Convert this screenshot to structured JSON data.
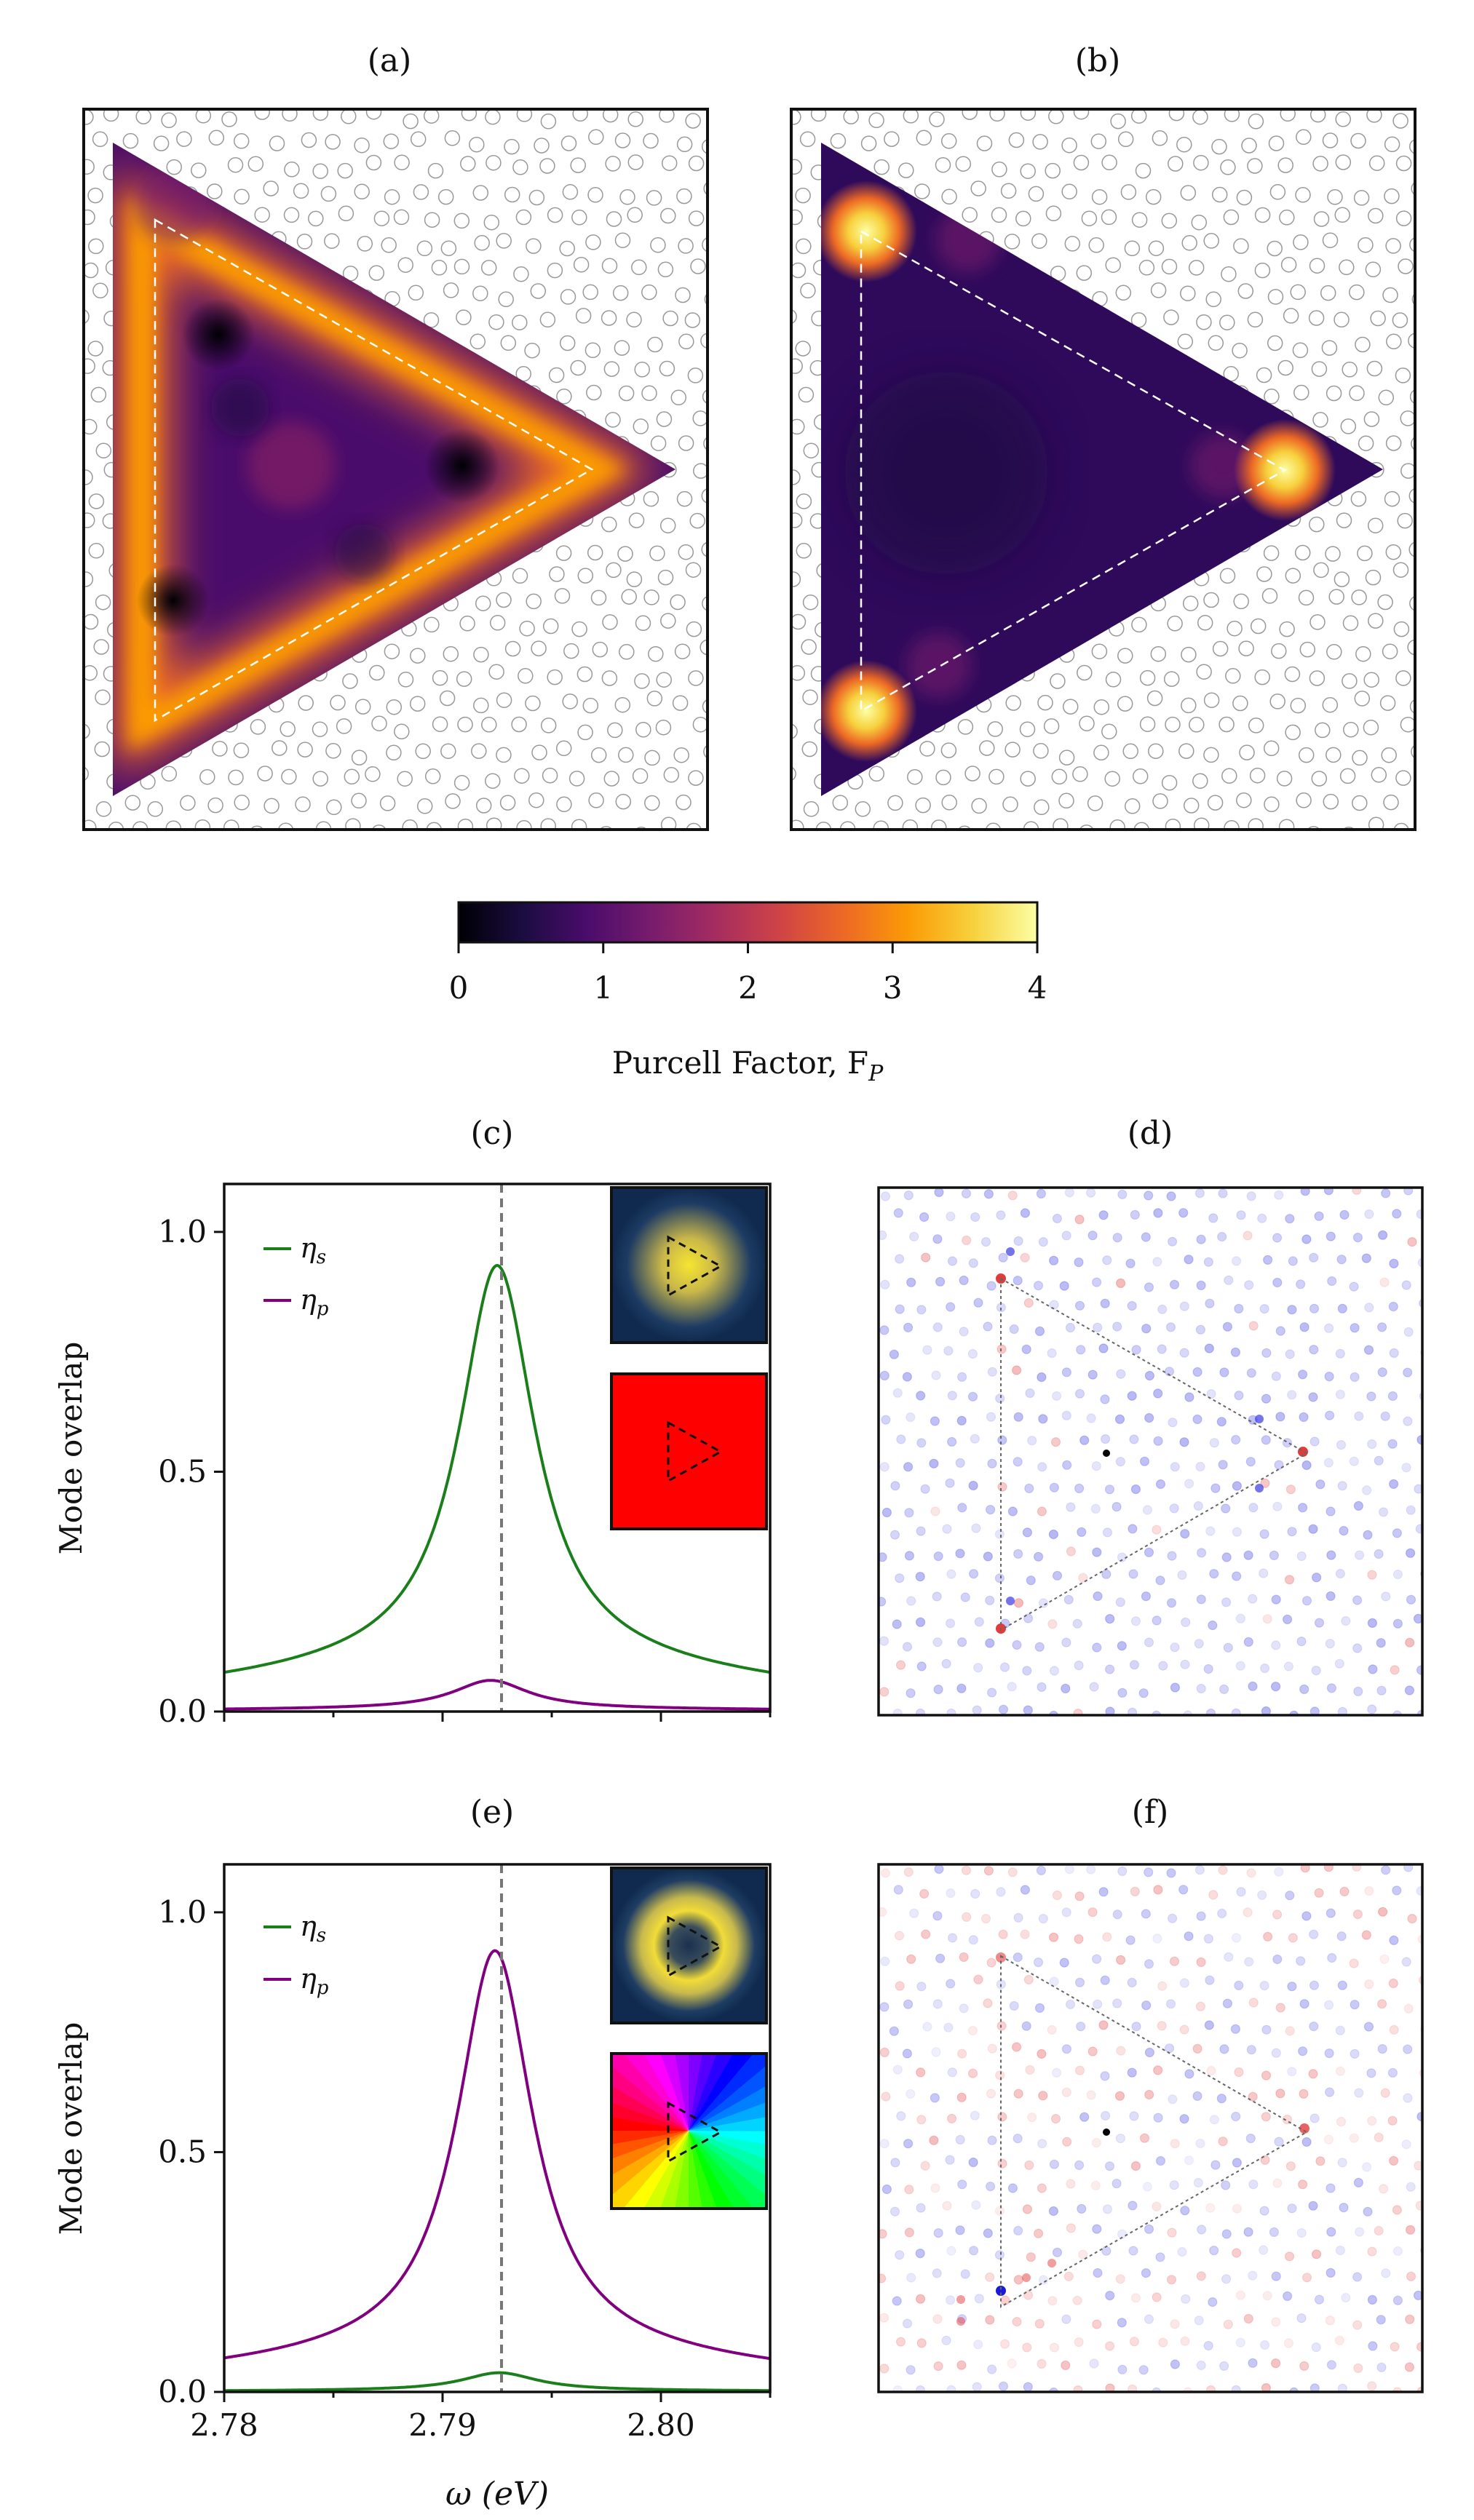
{
  "panel_labels": {
    "a": "(a)",
    "b": "(b)",
    "c": "(c)",
    "d": "(d)",
    "e": "(e)",
    "f": "(f)"
  },
  "colorbar": {
    "label": "Purcell Factor, F",
    "label_sub": "P",
    "ticks": [
      "0",
      "1",
      "2",
      "3",
      "4"
    ],
    "range": [
      0,
      4
    ],
    "colormap": [
      "#000004",
      "#1b0c41",
      "#4a0c6b",
      "#781c6d",
      "#a52c60",
      "#cf4446",
      "#ed6925",
      "#fb9b06",
      "#f7d13d",
      "#fcffa4"
    ]
  },
  "colors": {
    "eta_s": "#1a7f1a",
    "eta_p": "#800080",
    "resonance_line": "#777777",
    "positive_weight": "#e23b3b",
    "negative_weight": "#3b3be2"
  },
  "chart_data": [
    {
      "panel": "a",
      "type": "heatmap",
      "title": "(a)",
      "description_value_range": [
        0,
        4
      ],
      "feature": "bright ring along edges of triangle with dark spots near center"
    },
    {
      "panel": "b",
      "type": "heatmap",
      "title": "(b)",
      "description_value_range": [
        0,
        4
      ],
      "feature": "three bright hot spots at triangle corners"
    },
    {
      "panel": "c",
      "type": "line",
      "title": "(c)",
      "xlabel": "",
      "ylabel": "Mode overlap",
      "xlim": [
        2.78,
        2.805
      ],
      "ylim": [
        0,
        1.1
      ],
      "yticks": [
        "0.0",
        "0.5",
        "1.0"
      ],
      "xticks": [],
      "resonance": 2.7927,
      "legend": [
        "η_s",
        "η_p"
      ],
      "series": [
        {
          "name": "η_s",
          "center": 2.7925,
          "peak": 0.93,
          "base": 0.1
        },
        {
          "name": "η_p",
          "center": 2.7922,
          "peak": 0.065,
          "base": 0.006
        }
      ]
    },
    {
      "panel": "e",
      "type": "line",
      "title": "(e)",
      "xlabel": "ω (eV)",
      "ylabel": "Mode overlap",
      "xlim": [
        2.78,
        2.805
      ],
      "ylim": [
        0,
        1.1
      ],
      "yticks": [
        "0.0",
        "0.5",
        "1.0"
      ],
      "xticks": [
        "2.78",
        "2.79",
        "2.80"
      ],
      "resonance": 2.7927,
      "legend": [
        "η_s",
        "η_p"
      ],
      "series": [
        {
          "name": "η_p",
          "center": 2.7924,
          "peak": 0.92,
          "base": 0.08
        },
        {
          "name": "η_s",
          "center": 2.7926,
          "peak": 0.04,
          "base": 0.003
        }
      ]
    },
    {
      "panel": "d",
      "type": "scatter",
      "title": "(d)",
      "feature": "mode weights on triangular lattice; corners red"
    },
    {
      "panel": "f",
      "type": "scatter",
      "title": "(f)",
      "feature": "mode weights; mixed red and blue"
    }
  ]
}
